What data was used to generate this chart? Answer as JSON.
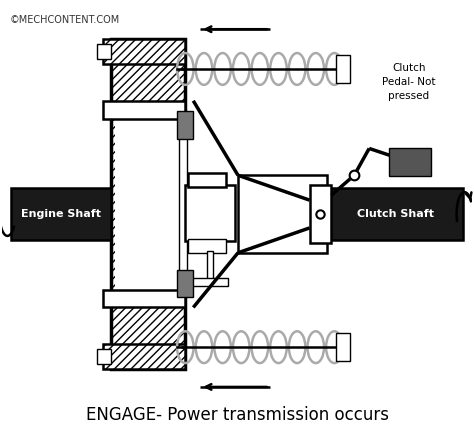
{
  "bg_color": "#ffffff",
  "line_color": "#000000",
  "shaft_color": "#1a1a1a",
  "gray_color": "#777777",
  "dark_gray": "#555555",
  "spring_gray": "#aaaaaa",
  "title_text": "ENGAGE- Power transmission occurs",
  "watermark": "©MECHCONTENT.COM",
  "label_engine": "Engine Shaft",
  "label_clutch": "Clutch Shaft",
  "label_pedal": "Clutch\nPedal- Not\npressed",
  "fig_width": 4.74,
  "fig_height": 4.38,
  "dpi": 100
}
